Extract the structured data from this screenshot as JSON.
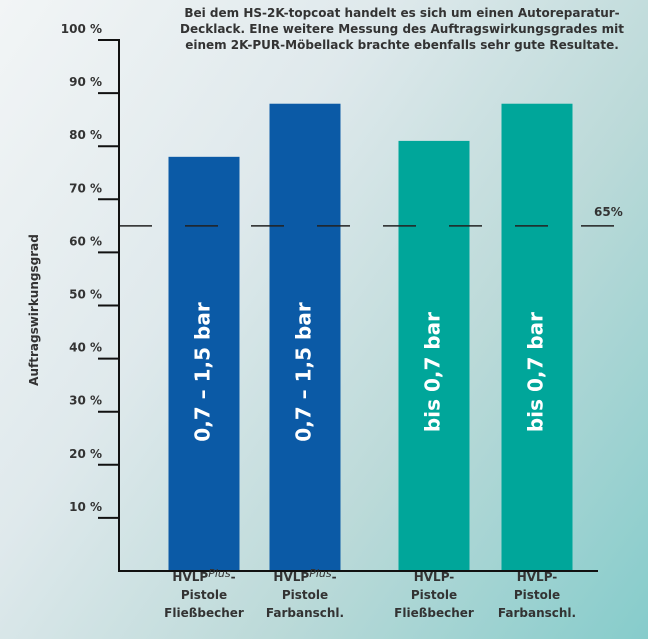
{
  "note": {
    "line1": "Bei dem HS-2K-topcoat handelt es sich um einen Autoreparatur-",
    "line2": "Decklack. EIne weitere Messung des Auftragswirkungsgrades mit",
    "line3": "einem 2K-PUR-Möbellack brachte ebenfalls sehr gute Resultate."
  },
  "chart_data": {
    "type": "bar",
    "ylabel": "Auftragswirkungsgrad",
    "ylim": [
      0,
      100
    ],
    "yticks": [
      "10 %",
      "20 %",
      "30 %",
      "40 %",
      "50 %",
      "60 %",
      "70 %",
      "80 %",
      "90 %",
      "100 %"
    ],
    "categories": [
      {
        "line1": "HVLP",
        "sup": "Plus",
        "dash": "-",
        "line2": "Pistole",
        "line3": "Fließbecher"
      },
      {
        "line1": "HVLP",
        "sup": "Plus",
        "dash": "-",
        "line2": "Pistole",
        "line3": "Farbanschl."
      },
      {
        "line1": "HVLP-",
        "sup": "",
        "dash": "",
        "line2": "Pistole",
        "line3": "Fließbecher"
      },
      {
        "line1": "HVLP-",
        "sup": "",
        "dash": "",
        "line2": "Pistole",
        "line3": "Farbanschl."
      }
    ],
    "values": [
      78,
      88,
      81,
      88
    ],
    "bar_labels": [
      "0,7 – 1,5 bar",
      "0,7 – 1,5 bar",
      "bis 0,7 bar",
      "bis 0,7 bar"
    ],
    "bar_colors": [
      "#0b5aa6",
      "#0b5aa6",
      "#00a69a",
      "#00a69a"
    ],
    "reference_line": {
      "value": 65,
      "label": "65%"
    },
    "grid": false,
    "legend": "none"
  }
}
